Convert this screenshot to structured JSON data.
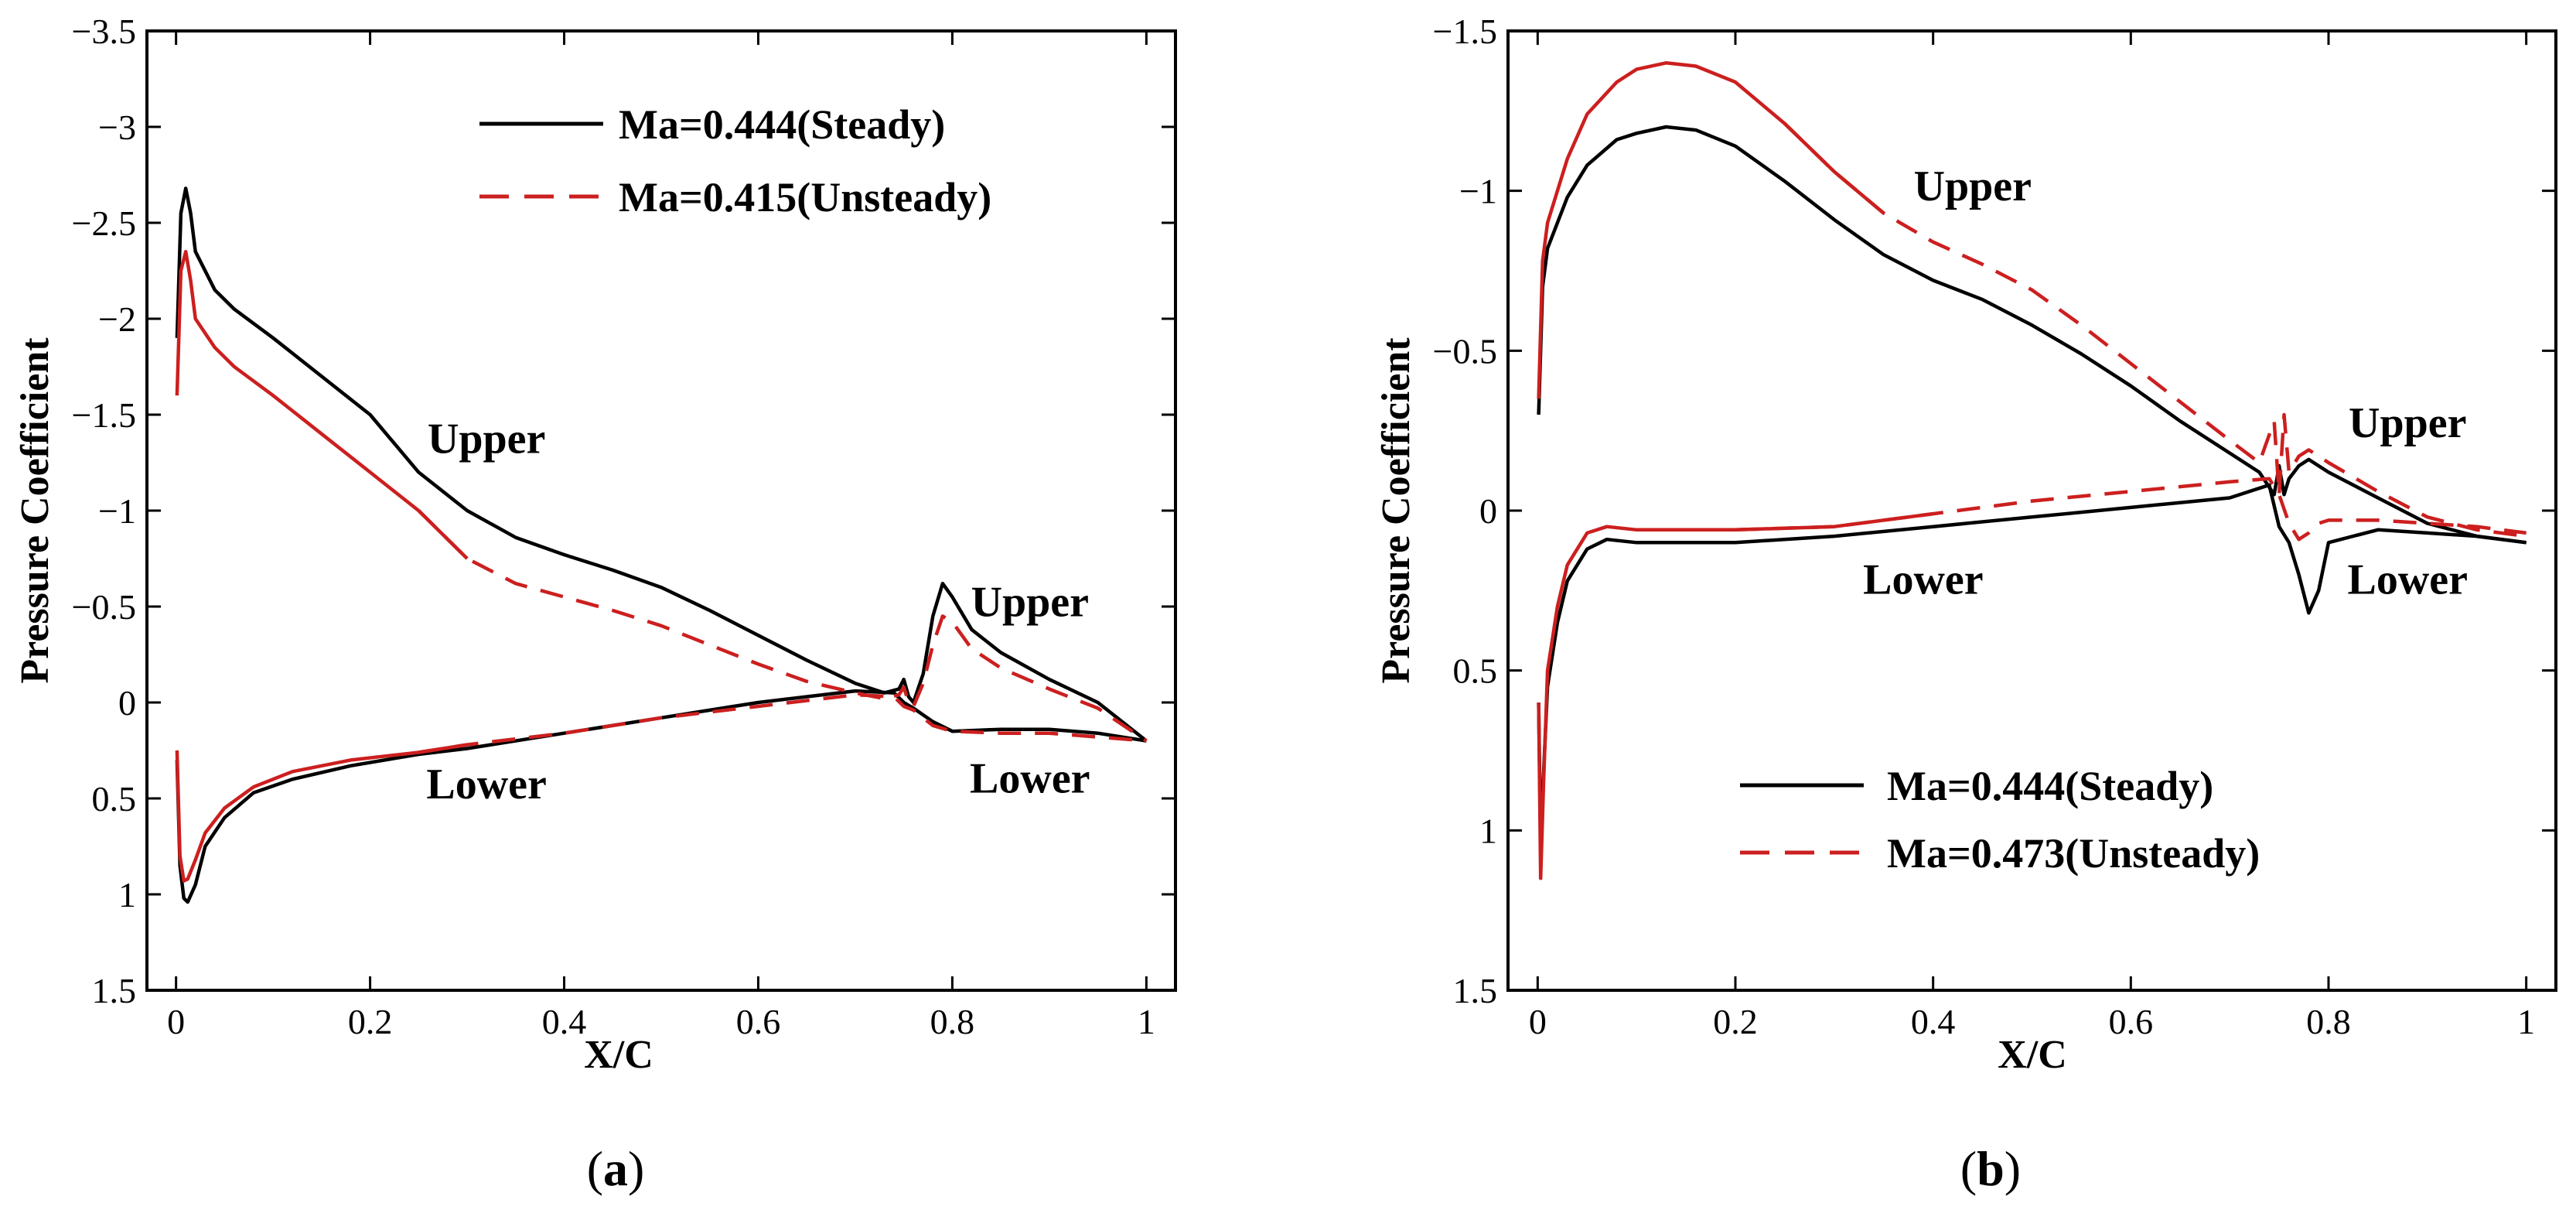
{
  "colors": {
    "steady": "#000000",
    "unsteady": "#cc1f1f"
  },
  "chart_data": [
    {
      "id": "a",
      "type": "line",
      "caption": "a",
      "xlabel": "X/C",
      "ylabel": "Pressure Coefficient",
      "xlim": [
        -0.03,
        1.03
      ],
      "ylim": [
        -3.5,
        1.5
      ],
      "y_inverted": true,
      "xticks": [
        0,
        0.2,
        0.4,
        0.6,
        0.8,
        1
      ],
      "xtick_labels": [
        "0",
        "0.2",
        "0.4",
        "0.6",
        "0.8",
        "1"
      ],
      "yticks": [
        -3.5,
        -3,
        -2.5,
        -2,
        -1.5,
        -1,
        -0.5,
        0,
        0.5,
        1,
        1.5
      ],
      "ytick_labels": [
        "−3.5",
        "−3",
        "−2.5",
        "−2",
        "−1.5",
        "−1",
        "−0.5",
        "0",
        "0.5",
        "1",
        "1.5"
      ],
      "legend_position": "top-right",
      "annotations": [
        {
          "text": "Upper",
          "x": 0.32,
          "y": -1.3
        },
        {
          "text": "Upper",
          "x": 0.88,
          "y": -0.45
        },
        {
          "text": "Lower",
          "x": 0.32,
          "y": 0.5
        },
        {
          "text": "Lower",
          "x": 0.88,
          "y": 0.47
        }
      ],
      "series": [
        {
          "name": "Ma=0.444(Steady)",
          "style": "solid",
          "upper": {
            "x": [
              0.001,
              0.005,
              0.01,
              0.015,
              0.02,
              0.04,
              0.06,
              0.1,
              0.15,
              0.2,
              0.25,
              0.3,
              0.35,
              0.4,
              0.45,
              0.5,
              0.55,
              0.6,
              0.65,
              0.7,
              0.73,
              0.745,
              0.75,
              0.755,
              0.76,
              0.77,
              0.78,
              0.79,
              0.8,
              0.82,
              0.85,
              0.9,
              0.95,
              1.0
            ],
            "y": [
              -1.9,
              -2.55,
              -2.68,
              -2.55,
              -2.35,
              -2.15,
              -2.05,
              -1.9,
              -1.7,
              -1.5,
              -1.2,
              -1.0,
              -0.86,
              -0.77,
              -0.69,
              -0.6,
              -0.48,
              -0.35,
              -0.22,
              -0.1,
              -0.05,
              -0.07,
              -0.12,
              -0.03,
              0.0,
              -0.15,
              -0.45,
              -0.62,
              -0.55,
              -0.38,
              -0.26,
              -0.12,
              0.0,
              0.2
            ]
          },
          "lower": {
            "x": [
              0.001,
              0.004,
              0.008,
              0.012,
              0.02,
              0.03,
              0.05,
              0.08,
              0.12,
              0.18,
              0.25,
              0.3,
              0.4,
              0.5,
              0.6,
              0.7,
              0.74,
              0.75,
              0.76,
              0.78,
              0.8,
              0.85,
              0.9,
              0.95,
              1.0
            ],
            "y": [
              0.3,
              0.85,
              1.02,
              1.04,
              0.95,
              0.75,
              0.6,
              0.47,
              0.4,
              0.33,
              0.27,
              0.24,
              0.16,
              0.08,
              0.0,
              -0.06,
              -0.05,
              0.0,
              0.03,
              0.1,
              0.15,
              0.14,
              0.14,
              0.16,
              0.2
            ]
          }
        },
        {
          "name": "Ma=0.415(Unsteady)",
          "style": "dashed",
          "dash_from_x": 0.26,
          "upper": {
            "x": [
              0.001,
              0.005,
              0.01,
              0.015,
              0.02,
              0.04,
              0.06,
              0.1,
              0.15,
              0.2,
              0.25,
              0.3,
              0.35,
              0.4,
              0.45,
              0.5,
              0.55,
              0.6,
              0.65,
              0.7,
              0.73,
              0.745,
              0.75,
              0.755,
              0.76,
              0.77,
              0.78,
              0.79,
              0.8,
              0.82,
              0.85,
              0.9,
              0.95,
              1.0
            ],
            "y": [
              -1.6,
              -2.25,
              -2.35,
              -2.2,
              -2.0,
              -1.85,
              -1.75,
              -1.6,
              -1.4,
              -1.2,
              -1.0,
              -0.75,
              -0.62,
              -0.55,
              -0.48,
              -0.4,
              -0.3,
              -0.2,
              -0.11,
              -0.05,
              -0.02,
              -0.04,
              -0.08,
              0.0,
              0.02,
              -0.1,
              -0.3,
              -0.45,
              -0.42,
              -0.28,
              -0.18,
              -0.07,
              0.03,
              0.2
            ]
          },
          "lower": {
            "x": [
              0.001,
              0.004,
              0.008,
              0.012,
              0.02,
              0.03,
              0.05,
              0.08,
              0.12,
              0.18,
              0.25,
              0.3,
              0.4,
              0.5,
              0.6,
              0.7,
              0.74,
              0.75,
              0.76,
              0.78,
              0.8,
              0.85,
              0.9,
              0.95,
              1.0
            ],
            "y": [
              0.25,
              0.8,
              0.93,
              0.92,
              0.82,
              0.68,
              0.55,
              0.44,
              0.36,
              0.3,
              0.26,
              0.22,
              0.16,
              0.08,
              0.02,
              -0.04,
              -0.03,
              0.02,
              0.04,
              0.12,
              0.15,
              0.16,
              0.16,
              0.18,
              0.2
            ]
          }
        }
      ]
    },
    {
      "id": "b",
      "type": "line",
      "caption": "b",
      "xlabel": "X/C",
      "ylabel": "Pressure Coefficient",
      "xlim": [
        -0.03,
        1.03
      ],
      "ylim": [
        -1.5,
        1.5
      ],
      "y_inverted": true,
      "xticks": [
        0,
        0.2,
        0.4,
        0.6,
        0.8,
        1
      ],
      "xtick_labels": [
        "0",
        "0.2",
        "0.4",
        "0.6",
        "0.8",
        "1"
      ],
      "yticks": [
        -1.5,
        -1,
        -0.5,
        0,
        0.5,
        1,
        1.5
      ],
      "ytick_labels": [
        "−1.5",
        "−1",
        "−0.5",
        "0",
        "0.5",
        "1",
        "1.5"
      ],
      "legend_position": "bottom-right",
      "annotations": [
        {
          "text": "Upper",
          "x": 0.44,
          "y": -0.97
        },
        {
          "text": "Upper",
          "x": 0.88,
          "y": -0.23
        },
        {
          "text": "Lower",
          "x": 0.39,
          "y": 0.26
        },
        {
          "text": "Lower",
          "x": 0.88,
          "y": 0.26
        }
      ],
      "series": [
        {
          "name": "Ma=0.444(Steady)",
          "style": "solid",
          "upper": {
            "x": [
              0.001,
              0.005,
              0.01,
              0.02,
              0.03,
              0.05,
              0.08,
              0.1,
              0.13,
              0.16,
              0.2,
              0.25,
              0.3,
              0.35,
              0.4,
              0.45,
              0.5,
              0.55,
              0.6,
              0.65,
              0.7,
              0.73,
              0.745,
              0.75,
              0.755,
              0.76,
              0.77,
              0.78,
              0.8,
              0.85,
              0.9,
              0.95,
              1.0
            ],
            "y": [
              -0.3,
              -0.7,
              -0.82,
              -0.9,
              -0.98,
              -1.08,
              -1.16,
              -1.18,
              -1.2,
              -1.19,
              -1.14,
              -1.03,
              -0.91,
              -0.8,
              -0.72,
              -0.66,
              -0.58,
              -0.49,
              -0.39,
              -0.28,
              -0.18,
              -0.12,
              -0.05,
              -0.14,
              -0.05,
              -0.1,
              -0.14,
              -0.16,
              -0.12,
              -0.04,
              0.04,
              0.08,
              0.1
            ]
          },
          "lower": {
            "x": [
              0.001,
              0.003,
              0.006,
              0.01,
              0.02,
              0.03,
              0.05,
              0.07,
              0.1,
              0.2,
              0.3,
              0.4,
              0.5,
              0.6,
              0.7,
              0.74,
              0.75,
              0.76,
              0.77,
              0.78,
              0.79,
              0.8,
              0.85,
              0.9,
              0.95,
              1.0
            ],
            "y": [
              0.6,
              1.05,
              0.82,
              0.55,
              0.35,
              0.22,
              0.12,
              0.09,
              0.1,
              0.1,
              0.08,
              0.05,
              0.02,
              -0.01,
              -0.04,
              -0.08,
              0.05,
              0.1,
              0.2,
              0.32,
              0.25,
              0.1,
              0.06,
              0.07,
              0.08,
              0.1
            ]
          }
        },
        {
          "name": "Ma=0.473(Unsteady)",
          "style": "dashed",
          "dash_from_x": 0.3,
          "upper": {
            "x": [
              0.001,
              0.005,
              0.01,
              0.02,
              0.03,
              0.05,
              0.08,
              0.1,
              0.13,
              0.16,
              0.2,
              0.25,
              0.3,
              0.35,
              0.4,
              0.45,
              0.5,
              0.55,
              0.6,
              0.65,
              0.7,
              0.73,
              0.745,
              0.75,
              0.755,
              0.76,
              0.77,
              0.78,
              0.8,
              0.85,
              0.9,
              0.95,
              1.0
            ],
            "y": [
              -0.35,
              -0.78,
              -0.9,
              -1.0,
              -1.1,
              -1.24,
              -1.34,
              -1.38,
              -1.4,
              -1.39,
              -1.34,
              -1.21,
              -1.06,
              -0.93,
              -0.84,
              -0.77,
              -0.69,
              -0.58,
              -0.46,
              -0.34,
              -0.22,
              -0.15,
              -0.28,
              -0.05,
              -0.3,
              -0.12,
              -0.17,
              -0.19,
              -0.15,
              -0.06,
              0.02,
              0.06,
              0.08
            ]
          },
          "lower": {
            "x": [
              0.001,
              0.003,
              0.006,
              0.01,
              0.02,
              0.03,
              0.05,
              0.07,
              0.1,
              0.2,
              0.3,
              0.4,
              0.5,
              0.6,
              0.7,
              0.74,
              0.75,
              0.76,
              0.77,
              0.78,
              0.79,
              0.8,
              0.85,
              0.9,
              0.95,
              1.0
            ],
            "y": [
              0.6,
              1.15,
              0.85,
              0.5,
              0.3,
              0.17,
              0.07,
              0.05,
              0.06,
              0.06,
              0.05,
              0.01,
              -0.03,
              -0.06,
              -0.09,
              -0.1,
              -0.05,
              0.04,
              0.09,
              0.07,
              0.04,
              0.03,
              0.03,
              0.04,
              0.05,
              0.07
            ]
          }
        }
      ]
    }
  ]
}
